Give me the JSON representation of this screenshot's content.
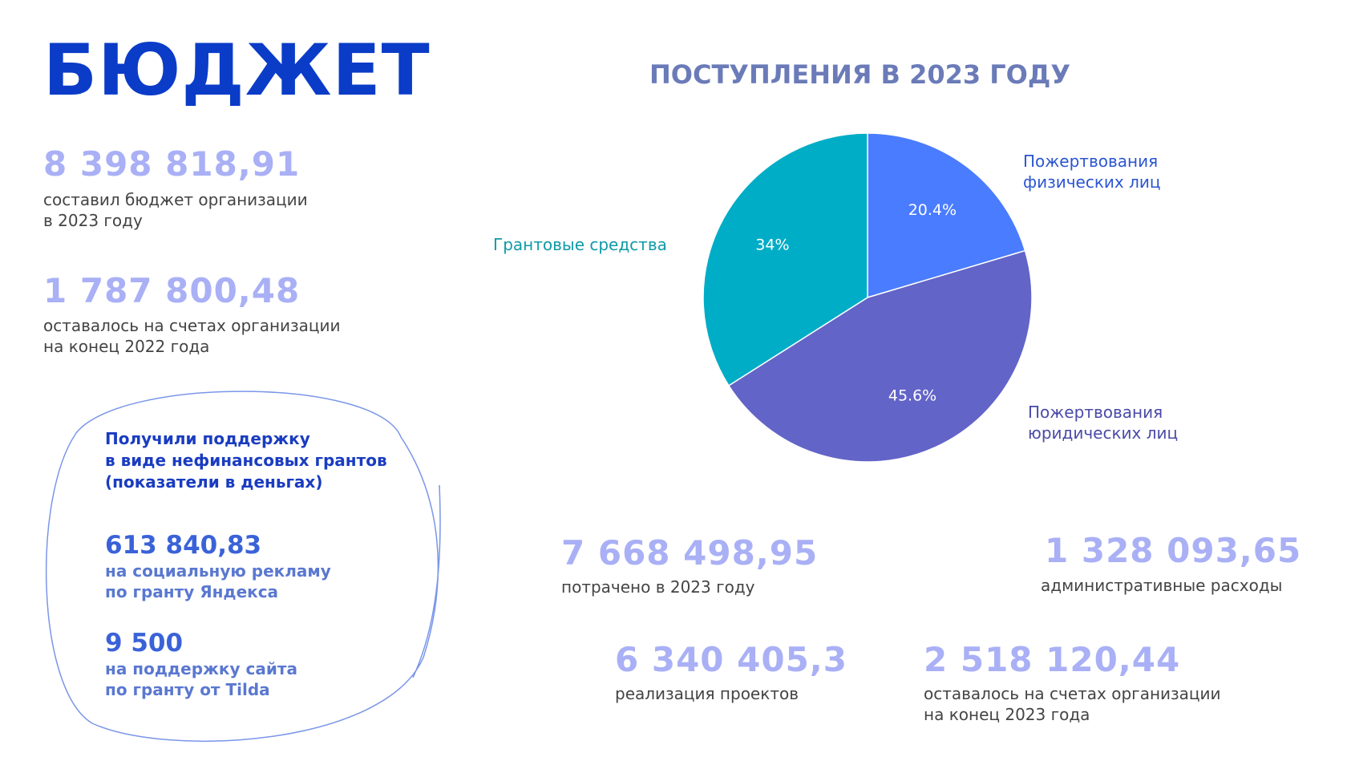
{
  "header": {
    "title": "БЮДЖЕТ"
  },
  "stats": [
    {
      "number": "8 398 818,91",
      "caption": "составил бюджет организации\nв 2023 году"
    },
    {
      "number": "1 787 800,48",
      "caption": "оставалось на счетах организации\nна конец  2022 года"
    }
  ],
  "grants": {
    "heading": "Получили поддержку\nв виде нефинансовых грантов\n(показатели в деньгах)",
    "items": [
      {
        "number": "613 840,83",
        "caption": "на социальную рекламу\nпо гранту Яндекса"
      },
      {
        "number": "9 500",
        "caption": "на поддержку сайта\nпо гранту от Tilda"
      }
    ]
  },
  "spending": [
    {
      "number": "7 668 498,95",
      "caption": "потрачено в 2023 году"
    },
    {
      "number": "1 328 093,65",
      "caption": "административные расходы"
    },
    {
      "number": "6 340 405,3",
      "caption": "реализация проектов"
    },
    {
      "number": "2 518 120,44",
      "caption": "оставалось на счетах организации\nна конец 2023 года"
    }
  ],
  "chart_data": {
    "type": "pie",
    "title": "ПОСТУПЛЕНИЯ В 2023 ГОДУ",
    "categories": [
      "Пожертвования\nфизических лиц",
      "Пожертвования\nюридических лиц",
      "Грантовые средства"
    ],
    "values": [
      20.4,
      45.6,
      34
    ],
    "value_labels": [
      "20.4%",
      "45.6%",
      "34%"
    ],
    "colors": [
      "#4a7cff",
      "#6264c8",
      "#00adc6"
    ],
    "label_colors": [
      "#2b55d0",
      "#4a4aa8",
      "#0f9aa8"
    ]
  }
}
